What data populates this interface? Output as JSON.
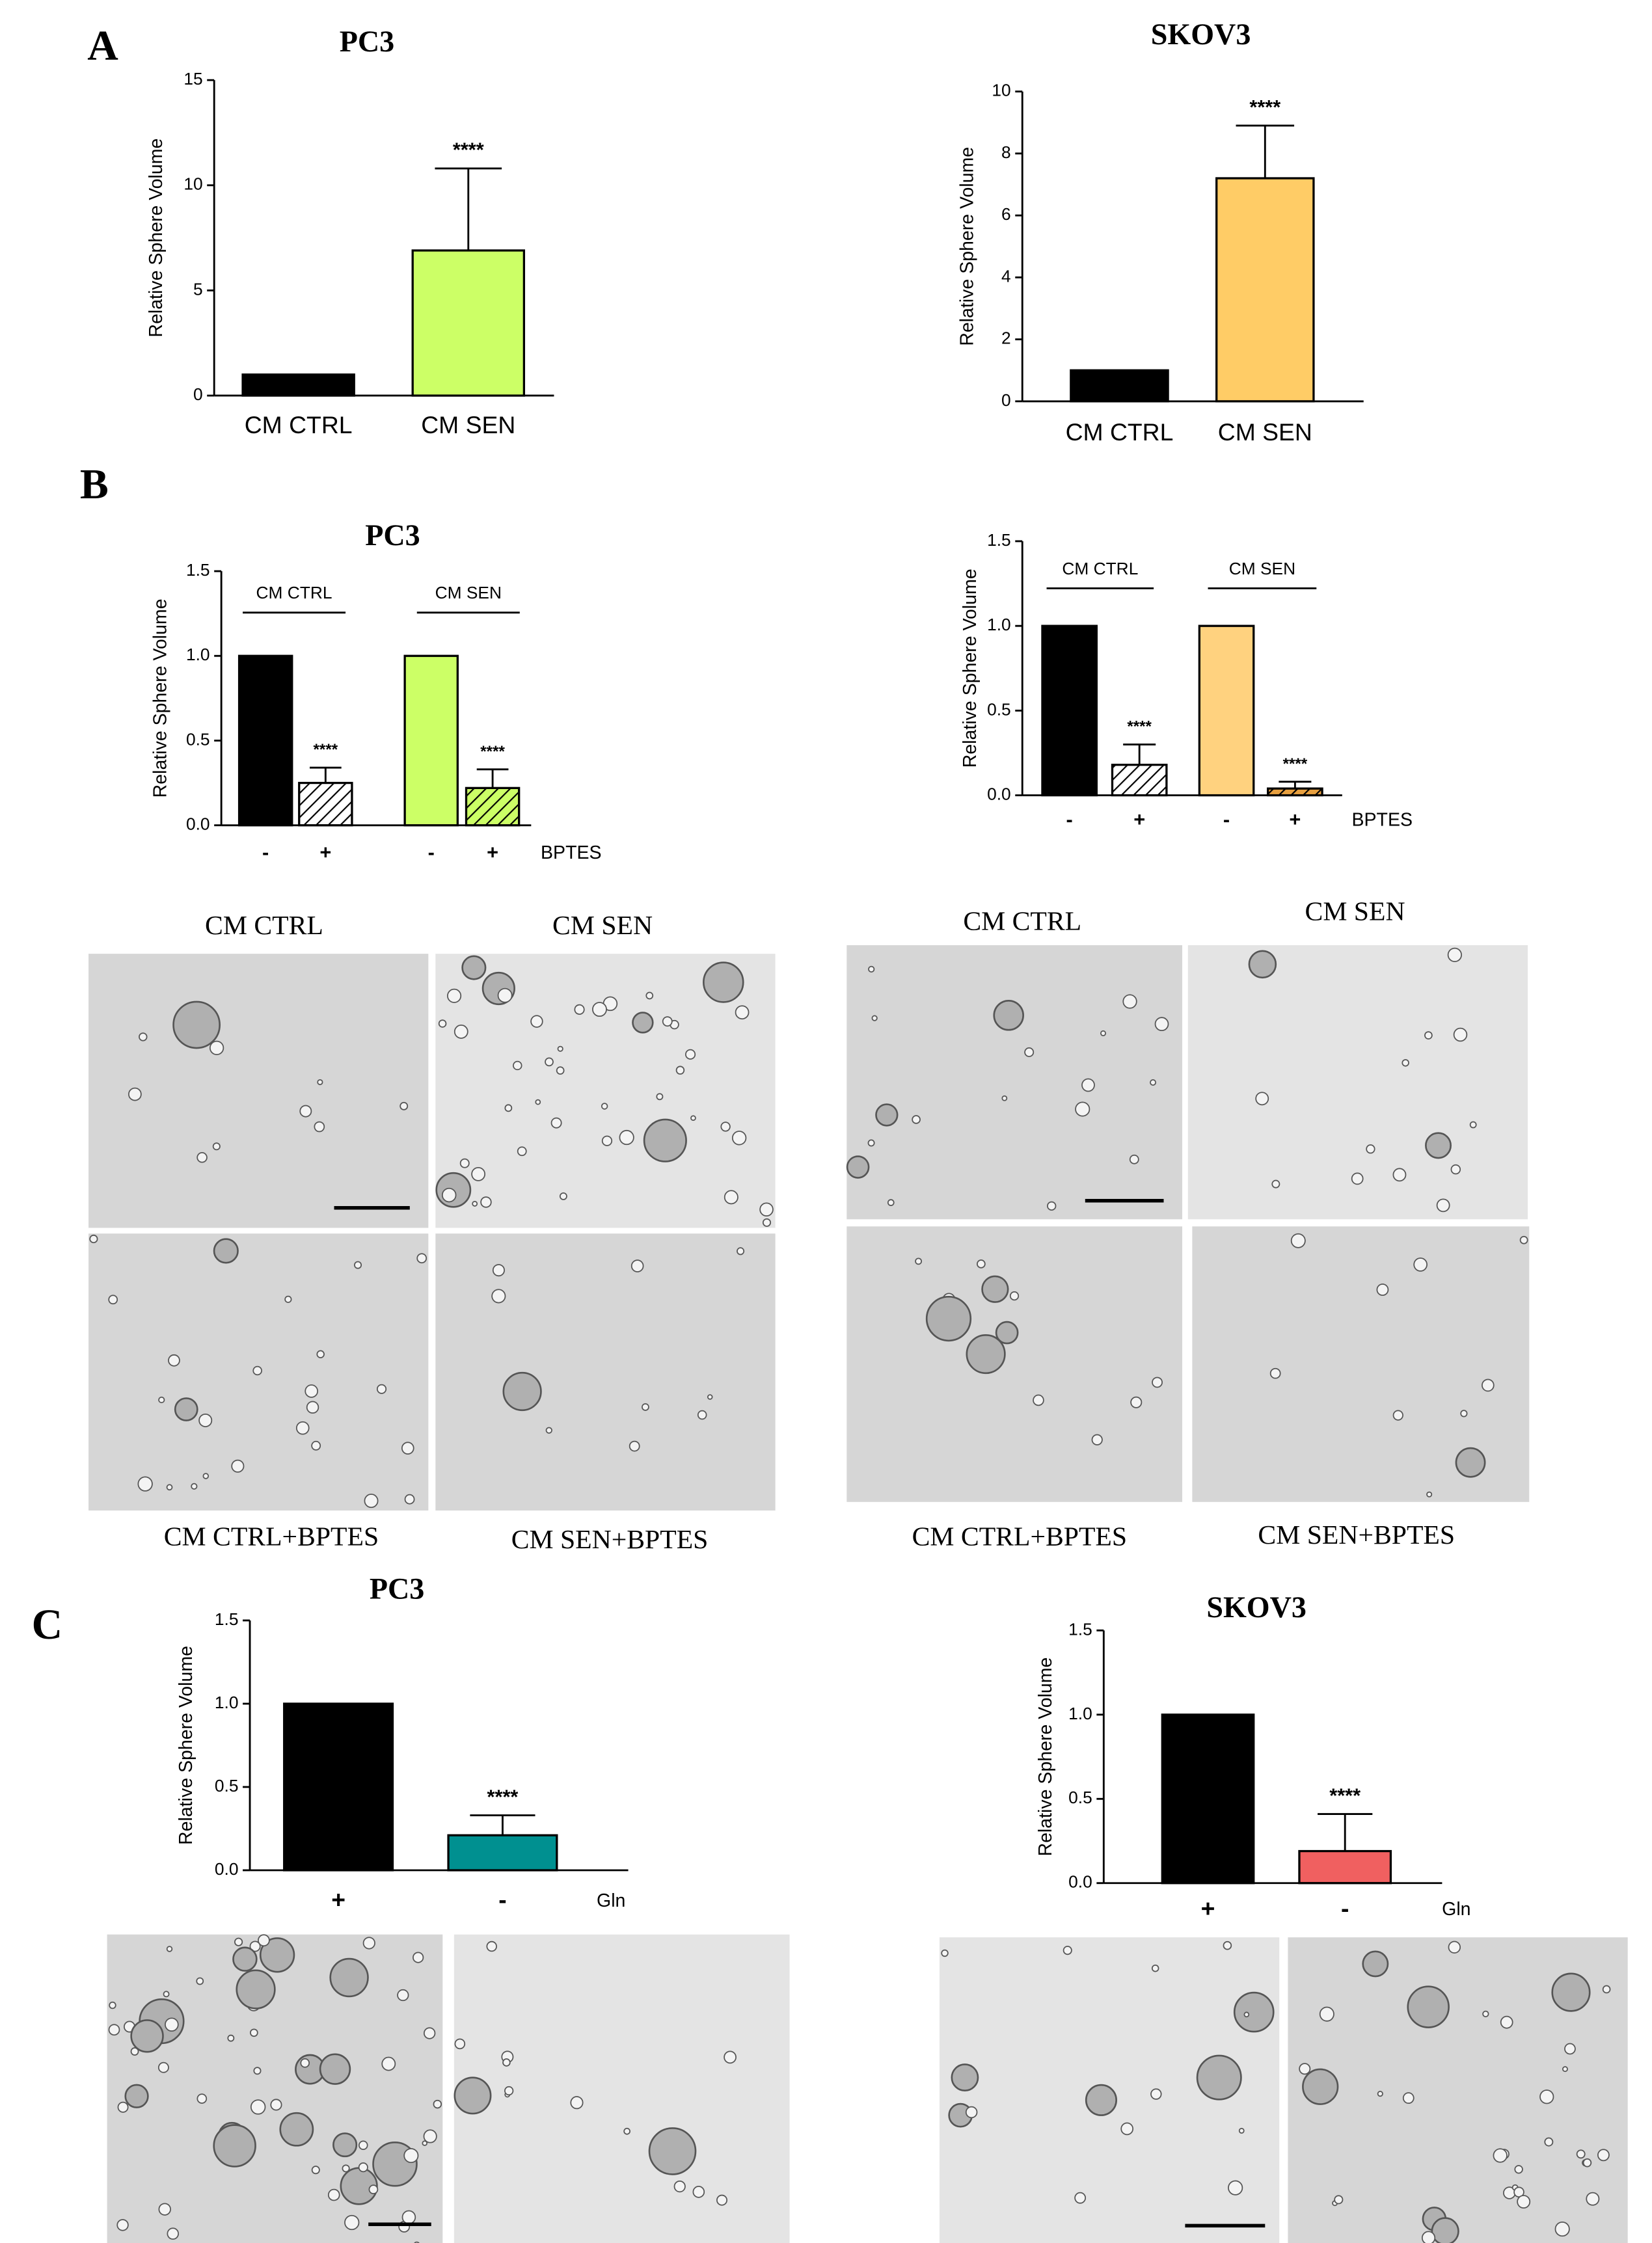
{
  "panel_labels": [
    "A",
    "B",
    "C"
  ],
  "micrograph_captions": [
    [
      "CM CTRL",
      "CM SEN",
      "CM CTRL+BPTES",
      "CM SEN+BPTES"
    ],
    [
      "CM CTRL",
      "CM SEN",
      "CM CTRL+BPTES",
      "CM SEN+BPTES"
    ]
  ],
  "chart_data": [
    {
      "type": "bar",
      "title": "PC3",
      "y_label": "Relative Sphere Volume",
      "categories": [
        "CM CTRL",
        "CM SEN"
      ],
      "values": [
        1,
        6.9
      ],
      "errors": [
        null,
        3.9
      ],
      "colors": [
        "#000000",
        "#ccff66"
      ],
      "annotations": [
        null,
        "****"
      ],
      "ylim": [
        0,
        15
      ],
      "yticks": [
        0,
        5,
        10,
        15
      ],
      "grid": false
    },
    {
      "type": "bar",
      "title": "SKOV3",
      "y_label": "Relative Sphere Volume",
      "categories": [
        "CM CTRL",
        "CM SEN"
      ],
      "values": [
        1,
        7.2
      ],
      "errors": [
        null,
        1.7
      ],
      "colors": [
        "#000000",
        "#ffcc66"
      ],
      "annotations": [
        null,
        "****"
      ],
      "ylim": [
        0,
        10
      ],
      "yticks": [
        0,
        2,
        4,
        6,
        8,
        10
      ],
      "grid": false
    },
    {
      "type": "bar",
      "title": "PC3",
      "y_label": "Relative Sphere Volume",
      "categories": [
        "-",
        "+",
        "-",
        "+"
      ],
      "group_labels": [
        "CM CTRL",
        "CM SEN"
      ],
      "factor_label": "BPTES",
      "values": [
        1,
        0.25,
        1,
        0.22
      ],
      "errors": [
        null,
        0.09,
        null,
        0.11
      ],
      "colors": [
        "#000000",
        "#ffffff",
        "#ccff66",
        "#ccff66"
      ],
      "hatch": [
        false,
        true,
        false,
        true
      ],
      "annotations": [
        null,
        "****",
        null,
        "****"
      ],
      "ylim": [
        0,
        1.5
      ],
      "yticks": [
        {
          "value": 0,
          "label": "0.0"
        },
        0.5,
        {
          "value": 1,
          "label": "1.0"
        },
        1.5
      ],
      "grid": false
    },
    {
      "type": "bar",
      "y_label": "Relative Sphere Volume",
      "categories": [
        "-",
        "+",
        "-",
        "+"
      ],
      "group_labels": [
        "CM CTRL",
        "CM SEN"
      ],
      "factor_label": "BPTES",
      "values": [
        1,
        0.18,
        1,
        0.04
      ],
      "errors": [
        null,
        0.12,
        null,
        0.04
      ],
      "colors": [
        "#000000",
        "#ffffff",
        "#ffd27f",
        "#e8a040"
      ],
      "hatch": [
        false,
        true,
        false,
        true
      ],
      "annotations": [
        null,
        "****",
        null,
        "****"
      ],
      "ylim": [
        0,
        1.5
      ],
      "yticks": [
        {
          "value": 0,
          "label": "0.0"
        },
        0.5,
        {
          "value": 1,
          "label": "1.0"
        },
        1.5
      ],
      "grid": false
    },
    {
      "type": "bar",
      "title": "PC3",
      "y_label": "Relative Sphere Volume",
      "categories": [
        "+",
        "-"
      ],
      "factor_label": "Gln",
      "values": [
        1,
        0.21
      ],
      "errors": [
        null,
        0.12
      ],
      "colors": [
        "#000000",
        "#009090"
      ],
      "annotations": [
        null,
        "****"
      ],
      "ylim": [
        0,
        1.5
      ],
      "yticks": [
        {
          "value": 0,
          "label": "0.0"
        },
        0.5,
        {
          "value": 1,
          "label": "1.0"
        },
        1.5
      ],
      "grid": false
    },
    {
      "type": "bar",
      "title": "SKOV3",
      "y_label": "Relative Sphere Volume",
      "categories": [
        "+",
        "-"
      ],
      "factor_label": "Gln",
      "values": [
        1,
        0.19
      ],
      "errors": [
        null,
        0.22
      ],
      "colors": [
        "#000000",
        "#f06060"
      ],
      "annotations": [
        null,
        "****"
      ],
      "ylim": [
        0,
        1.5
      ],
      "yticks": [
        {
          "value": 0,
          "label": "0.0"
        },
        0.5,
        {
          "value": 1,
          "label": "1.0"
        },
        1.5
      ],
      "grid": false
    }
  ]
}
